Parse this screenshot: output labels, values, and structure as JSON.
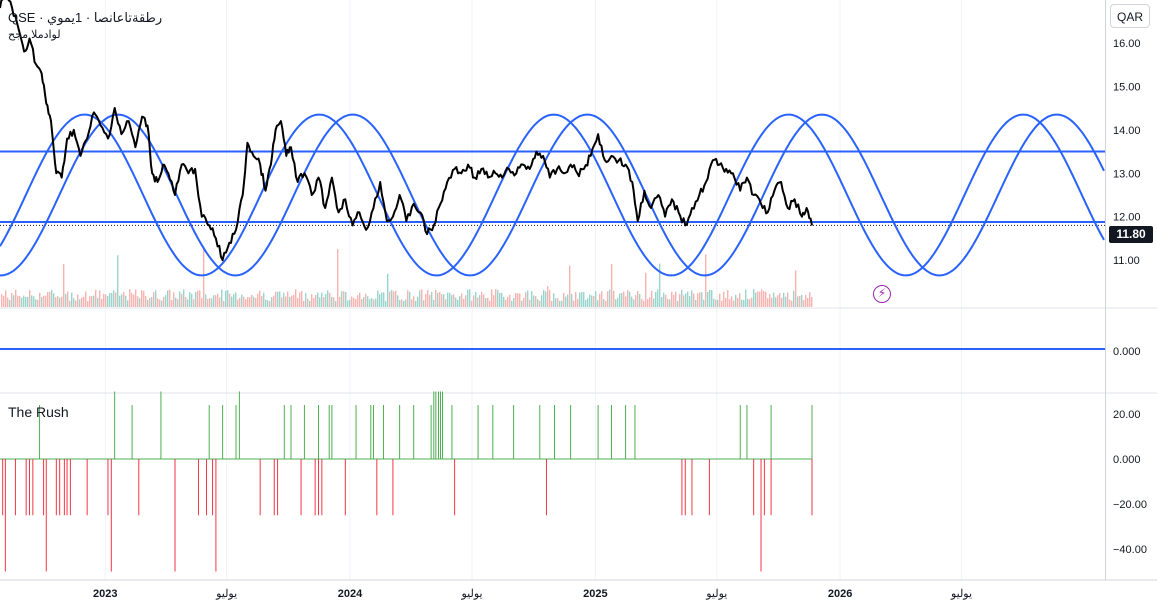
{
  "legend": {
    "title": "QSE · رطقةتاعانصا · 1يموي",
    "subtitle": "لوادملا مجح"
  },
  "currency_button": "QAR",
  "price_badge": "11.80",
  "rush_label": "The Rush",
  "colors": {
    "price_line": "#000000",
    "sine_wave": "#2962ff",
    "level_line": "#2962ff",
    "volume_up": "#7fcbc1",
    "volume_down": "#f4a09c",
    "rush_positive": "#4caf50",
    "rush_negative": "#f23645",
    "event_icon": "#9c27b0"
  },
  "icons": {
    "event": "lightning-icon"
  },
  "chart_data": [
    {
      "type": "line",
      "panel": "price",
      "series_color": "black",
      "y_axis_ticks": [
        "16.00",
        "15.00",
        "14.00",
        "13.00",
        "12.00",
        "11.00"
      ],
      "ylim": [
        10.2,
        17.1
      ],
      "x_axis_ticks": [
        "2023",
        "يوليو",
        "2024",
        "يوليو",
        "2025",
        "يوليو",
        "2026",
        "يوليو"
      ],
      "x_tick_dates": [
        "2023-01-01",
        "2023-07-01",
        "2024-01-01",
        "2024-07-01",
        "2025-01-01",
        "2025-07-01",
        "2026-01-01",
        "2026-07-01"
      ],
      "xlim": [
        "2022-07-28",
        "2027-01-31"
      ],
      "last_price": 11.8,
      "horizontal_levels": [
        13.5,
        11.88
      ],
      "dotted_last_price_line": 11.8,
      "price_points": [
        [
          "2022-07-28",
          16.8
        ],
        [
          "2022-08-05",
          17.2
        ],
        [
          "2022-08-15",
          16.8
        ],
        [
          "2022-08-25",
          16.3
        ],
        [
          "2022-09-02",
          15.8
        ],
        [
          "2022-09-10",
          16.1
        ],
        [
          "2022-09-20",
          15.5
        ],
        [
          "2022-09-28",
          15.3
        ],
        [
          "2022-10-05",
          14.6
        ],
        [
          "2022-10-12",
          14.2
        ],
        [
          "2022-10-20",
          13.0
        ],
        [
          "2022-10-28",
          12.9
        ],
        [
          "2022-11-05",
          13.8
        ],
        [
          "2022-11-15",
          14.0
        ],
        [
          "2022-11-25",
          13.4
        ],
        [
          "2022-12-05",
          13.8
        ],
        [
          "2022-12-15",
          14.4
        ],
        [
          "2022-12-25",
          14.1
        ],
        [
          "2023-01-05",
          13.8
        ],
        [
          "2023-01-15",
          14.5
        ],
        [
          "2023-01-25",
          13.9
        ],
        [
          "2023-02-05",
          14.2
        ],
        [
          "2023-02-15",
          13.6
        ],
        [
          "2023-02-25",
          14.3
        ],
        [
          "2023-03-05",
          14.1
        ],
        [
          "2023-03-12",
          13.0
        ],
        [
          "2023-03-20",
          12.8
        ],
        [
          "2023-03-28",
          13.2
        ],
        [
          "2023-04-05",
          13.0
        ],
        [
          "2023-04-15",
          12.5
        ],
        [
          "2023-04-25",
          13.2
        ],
        [
          "2023-05-05",
          13.0
        ],
        [
          "2023-05-15",
          13.1
        ],
        [
          "2023-05-25",
          12.0
        ],
        [
          "2023-06-05",
          11.8
        ],
        [
          "2023-06-15",
          11.5
        ],
        [
          "2023-06-25",
          11.0
        ],
        [
          "2023-07-05",
          11.4
        ],
        [
          "2023-07-15",
          11.7
        ],
        [
          "2023-07-25",
          12.5
        ],
        [
          "2023-08-01",
          13.7
        ],
        [
          "2023-08-10",
          13.4
        ],
        [
          "2023-08-20",
          13.2
        ],
        [
          "2023-08-28",
          12.6
        ],
        [
          "2023-09-05",
          13.2
        ],
        [
          "2023-09-12",
          14.0
        ],
        [
          "2023-09-20",
          14.2
        ],
        [
          "2023-09-28",
          13.4
        ],
        [
          "2023-10-05",
          13.6
        ],
        [
          "2023-10-15",
          12.8
        ],
        [
          "2023-10-25",
          13.0
        ],
        [
          "2023-11-05",
          12.5
        ],
        [
          "2023-11-15",
          12.9
        ],
        [
          "2023-11-25",
          12.2
        ],
        [
          "2023-12-05",
          12.9
        ],
        [
          "2023-12-15",
          12.1
        ],
        [
          "2023-12-25",
          12.4
        ],
        [
          "2024-01-05",
          11.8
        ],
        [
          "2024-01-15",
          12.1
        ],
        [
          "2024-01-25",
          11.7
        ],
        [
          "2024-02-05",
          12.2
        ],
        [
          "2024-02-15",
          12.8
        ],
        [
          "2024-02-25",
          11.9
        ],
        [
          "2024-03-05",
          12.0
        ],
        [
          "2024-03-15",
          12.5
        ],
        [
          "2024-03-25",
          11.9
        ],
        [
          "2024-04-05",
          12.3
        ],
        [
          "2024-04-15",
          12.1
        ],
        [
          "2024-04-25",
          11.6
        ],
        [
          "2024-05-05",
          11.8
        ],
        [
          "2024-05-15",
          12.3
        ],
        [
          "2024-05-25",
          12.8
        ],
        [
          "2024-06-05",
          13.1
        ],
        [
          "2024-06-15",
          13.0
        ],
        [
          "2024-06-25",
          13.2
        ],
        [
          "2024-07-05",
          12.9
        ],
        [
          "2024-07-15",
          13.1
        ],
        [
          "2024-07-25",
          12.9
        ],
        [
          "2024-08-05",
          13.0
        ],
        [
          "2024-08-15",
          12.9
        ],
        [
          "2024-08-25",
          13.1
        ],
        [
          "2024-09-05",
          13.0
        ],
        [
          "2024-09-15",
          13.2
        ],
        [
          "2024-09-25",
          13.1
        ],
        [
          "2024-10-05",
          13.5
        ],
        [
          "2024-10-15",
          13.4
        ],
        [
          "2024-10-25",
          12.9
        ],
        [
          "2024-11-05",
          13.1
        ],
        [
          "2024-11-15",
          13.0
        ],
        [
          "2024-11-25",
          13.2
        ],
        [
          "2024-12-05",
          13.0
        ],
        [
          "2024-12-15",
          13.1
        ],
        [
          "2024-12-25",
          13.4
        ],
        [
          "2025-01-05",
          13.9
        ],
        [
          "2025-01-15",
          13.3
        ],
        [
          "2025-01-25",
          13.4
        ],
        [
          "2025-02-05",
          13.3
        ],
        [
          "2025-02-15",
          13.2
        ],
        [
          "2025-02-25",
          12.8
        ],
        [
          "2025-03-05",
          11.9
        ],
        [
          "2025-03-15",
          12.6
        ],
        [
          "2025-03-25",
          12.2
        ],
        [
          "2025-04-05",
          12.5
        ],
        [
          "2025-04-15",
          12.0
        ],
        [
          "2025-04-25",
          12.4
        ],
        [
          "2025-05-05",
          12.1
        ],
        [
          "2025-05-15",
          11.8
        ],
        [
          "2025-05-25",
          12.2
        ],
        [
          "2025-06-05",
          12.5
        ],
        [
          "2025-06-15",
          12.8
        ],
        [
          "2025-06-25",
          13.3
        ],
        [
          "2025-07-05",
          13.2
        ],
        [
          "2025-07-15",
          13.1
        ],
        [
          "2025-07-25",
          13.0
        ],
        [
          "2025-08-05",
          12.6
        ],
        [
          "2025-08-15",
          12.9
        ],
        [
          "2025-08-25",
          12.5
        ],
        [
          "2025-09-05",
          12.3
        ],
        [
          "2025-09-15",
          12.1
        ],
        [
          "2025-09-25",
          12.6
        ],
        [
          "2025-10-05",
          12.8
        ],
        [
          "2025-10-15",
          12.2
        ],
        [
          "2025-10-25",
          12.4
        ],
        [
          "2025-11-05",
          12.0
        ],
        [
          "2025-11-12",
          12.2
        ],
        [
          "2025-11-20",
          11.8
        ]
      ]
    },
    {
      "type": "line",
      "panel": "price",
      "series_color": "blue",
      "description_word": "sine",
      "sine_waves": [
        {
          "center": 12.5,
          "amplitude": 1.85,
          "period_days": 350,
          "peak_date": "2022-12-01"
        },
        {
          "center": 12.5,
          "amplitude": 1.85,
          "period_days": 350,
          "peak_date": "2023-01-20"
        }
      ]
    },
    {
      "type": "bar",
      "panel": "volume",
      "note": "volume histogram beneath price, bars colored by up/down day"
    },
    {
      "type": "line",
      "panel": "indicator-middle",
      "y_axis_ticks": [
        "0.000"
      ],
      "level": 0.0
    },
    {
      "type": "bar",
      "panel": "the-rush",
      "y_axis_ticks": [
        "20.00",
        "0.000",
        "−20.00",
        "−40.00"
      ],
      "ylim": [
        -52,
        30
      ],
      "positive_dates": [
        "2022-09-25",
        "2023-01-15",
        "2023-02-10",
        "2023-03-25",
        "2023-06-05",
        "2023-06-25",
        "2023-07-15",
        "2023-07-20",
        "2023-09-25",
        "2023-10-05",
        "2023-10-25",
        "2023-11-15",
        "2023-12-01",
        "2023-12-05",
        "2024-01-10",
        "2024-02-01",
        "2024-02-05",
        "2024-02-20",
        "2024-03-15",
        "2024-04-05",
        "2024-05-01",
        "2024-05-05",
        "2024-05-08",
        "2024-05-12",
        "2024-05-15",
        "2024-05-18",
        "2024-06-01",
        "2024-07-10",
        "2024-08-01",
        "2024-09-01",
        "2024-10-10",
        "2024-11-01",
        "2024-11-25",
        "2025-01-05",
        "2025-01-25",
        "2025-02-15",
        "2025-03-01",
        "2025-08-05",
        "2025-08-15",
        "2025-09-20",
        "2025-11-20"
      ],
      "positive_values": [
        24,
        30,
        24,
        30,
        24,
        24,
        24,
        30,
        24,
        24,
        24,
        24,
        24,
        24,
        24,
        24,
        24,
        24,
        24,
        24,
        24,
        30,
        30,
        30,
        30,
        30,
        24,
        24,
        24,
        24,
        24,
        24,
        24,
        24,
        24,
        24,
        24,
        24,
        24,
        24,
        24
      ],
      "negative_dates": [
        "2022-08-01",
        "2022-08-05",
        "2022-08-20",
        "2022-09-05",
        "2022-09-10",
        "2022-09-15",
        "2022-10-01",
        "2022-10-05",
        "2022-10-20",
        "2022-10-25",
        "2022-11-01",
        "2022-11-05",
        "2022-11-10",
        "2022-12-05",
        "2023-01-05",
        "2023-01-10",
        "2023-02-20",
        "2023-04-15",
        "2023-05-20",
        "2023-06-01",
        "2023-06-10",
        "2023-06-15",
        "2023-08-20",
        "2023-09-10",
        "2023-09-15",
        "2023-10-20",
        "2023-11-10",
        "2023-11-15",
        "2023-11-20",
        "2023-12-25",
        "2024-02-10",
        "2024-03-05",
        "2024-06-05",
        "2024-10-20",
        "2025-05-10",
        "2025-05-15",
        "2025-05-25",
        "2025-06-20",
        "2025-08-25",
        "2025-09-05",
        "2025-09-10",
        "2025-09-20",
        "2025-11-20"
      ],
      "negative_values": [
        -25,
        -50,
        -25,
        -25,
        -25,
        -25,
        -25,
        -50,
        -25,
        -25,
        -25,
        -25,
        -25,
        -25,
        -25,
        -50,
        -25,
        -50,
        -25,
        -25,
        -25,
        -50,
        -25,
        -25,
        -25,
        -25,
        -25,
        -25,
        -25,
        -25,
        -25,
        -25,
        -25,
        -25,
        -25,
        -25,
        -25,
        -25,
        -25,
        -50,
        -25,
        -25,
        -25
      ]
    }
  ]
}
